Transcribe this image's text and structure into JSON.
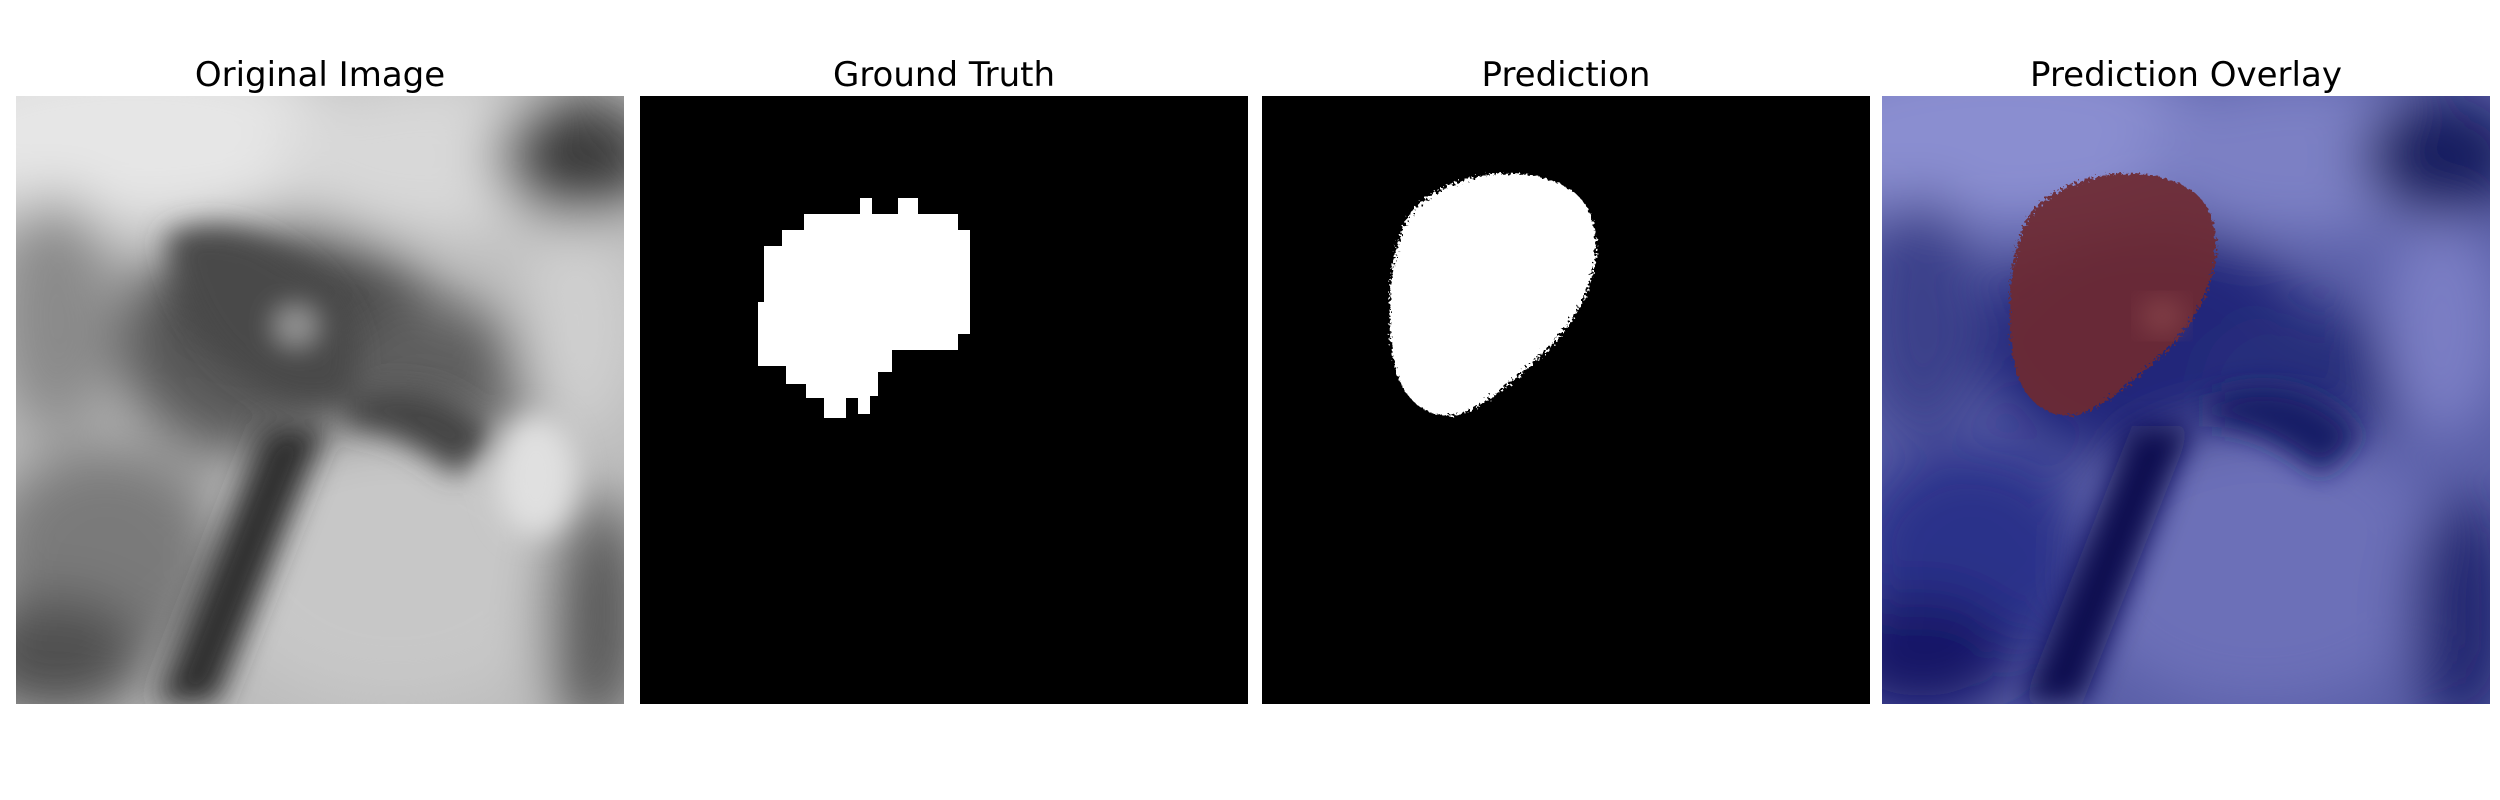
{
  "figure": {
    "panels": [
      {
        "id": "original",
        "title": "Original Image"
      },
      {
        "id": "ground_truth",
        "title": "Ground Truth"
      },
      {
        "id": "prediction",
        "title": "Prediction"
      },
      {
        "id": "overlay",
        "title": "Prediction Overlay"
      }
    ]
  },
  "colors": {
    "background": "#ffffff",
    "mask_background": "#000000",
    "mask_foreground": "#ffffff",
    "overlay_base": "#141a6e",
    "overlay_region": "#7a2b2b"
  }
}
